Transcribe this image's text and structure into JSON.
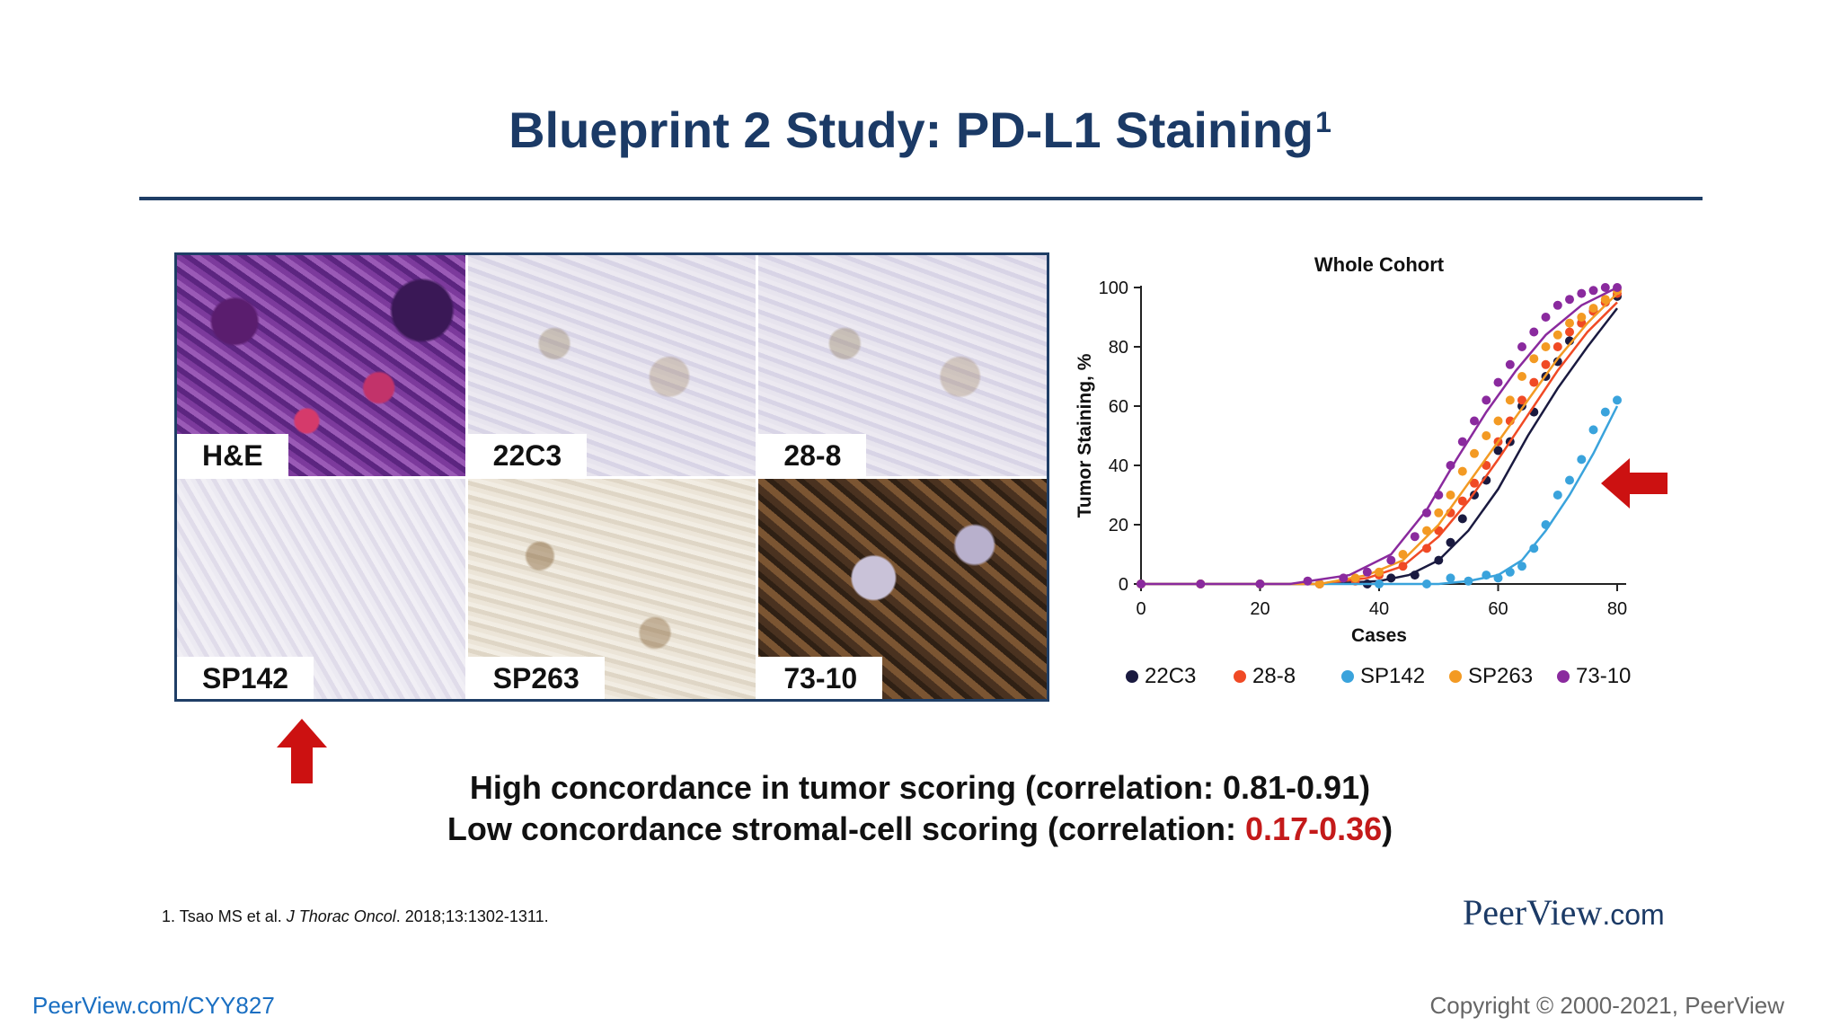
{
  "slide": {
    "title": "Blueprint 2 Study: PD-L1 Staining",
    "title_sup": "1"
  },
  "panels": [
    {
      "label": "H&E"
    },
    {
      "label": "22C3"
    },
    {
      "label": "28-8"
    },
    {
      "label": "SP142"
    },
    {
      "label": "SP263"
    },
    {
      "label": "73-10"
    }
  ],
  "colors": {
    "title": "#1b3a66",
    "accent_red": "#c41a1a",
    "arrow_red": "#cc1111",
    "series": [
      "#1a1a40",
      "#f04a25",
      "#3aa3dc",
      "#f39a23",
      "#8a2a9e"
    ]
  },
  "chart_data": {
    "type": "scatter",
    "title": "Whole Cohort",
    "xlabel": "Cases",
    "ylabel": "Tumor Staining, %",
    "xlim": [
      0,
      80
    ],
    "ylim": [
      0,
      100
    ],
    "xticks": [
      "0",
      "20",
      "40",
      "60",
      "80"
    ],
    "yticks": [
      "0",
      "20",
      "40",
      "60",
      "80",
      "100"
    ],
    "legend_position": "bottom",
    "series": [
      {
        "name": "22C3",
        "color": "#1a1a40",
        "points": [
          [
            0,
            0
          ],
          [
            10,
            0
          ],
          [
            20,
            0
          ],
          [
            30,
            0
          ],
          [
            38,
            0
          ],
          [
            42,
            2
          ],
          [
            46,
            3
          ],
          [
            50,
            8
          ],
          [
            52,
            14
          ],
          [
            54,
            22
          ],
          [
            56,
            30
          ],
          [
            58,
            35
          ],
          [
            60,
            45
          ],
          [
            62,
            48
          ],
          [
            64,
            60
          ],
          [
            66,
            58
          ],
          [
            68,
            70
          ],
          [
            70,
            75
          ],
          [
            72,
            82
          ],
          [
            74,
            88
          ],
          [
            76,
            92
          ],
          [
            78,
            95
          ],
          [
            80,
            97
          ]
        ],
        "curve": [
          [
            0,
            0
          ],
          [
            30,
            0
          ],
          [
            40,
            1
          ],
          [
            45,
            3
          ],
          [
            50,
            8
          ],
          [
            55,
            18
          ],
          [
            60,
            32
          ],
          [
            65,
            50
          ],
          [
            70,
            66
          ],
          [
            75,
            80
          ],
          [
            80,
            93
          ]
        ]
      },
      {
        "name": "28-8",
        "color": "#f04a25",
        "points": [
          [
            0,
            0
          ],
          [
            10,
            0
          ],
          [
            20,
            0
          ],
          [
            30,
            0
          ],
          [
            36,
            1
          ],
          [
            40,
            3
          ],
          [
            44,
            6
          ],
          [
            48,
            12
          ],
          [
            50,
            18
          ],
          [
            52,
            24
          ],
          [
            54,
            28
          ],
          [
            56,
            34
          ],
          [
            58,
            40
          ],
          [
            60,
            48
          ],
          [
            62,
            55
          ],
          [
            64,
            62
          ],
          [
            66,
            68
          ],
          [
            68,
            74
          ],
          [
            70,
            80
          ],
          [
            72,
            85
          ],
          [
            74,
            88
          ],
          [
            76,
            92
          ],
          [
            78,
            95
          ],
          [
            80,
            98
          ]
        ],
        "curve": [
          [
            0,
            0
          ],
          [
            30,
            0
          ],
          [
            38,
            2
          ],
          [
            44,
            6
          ],
          [
            50,
            16
          ],
          [
            55,
            28
          ],
          [
            60,
            42
          ],
          [
            65,
            57
          ],
          [
            70,
            72
          ],
          [
            75,
            85
          ],
          [
            80,
            95
          ]
        ]
      },
      {
        "name": "SP142",
        "color": "#3aa3dc",
        "points": [
          [
            0,
            0
          ],
          [
            20,
            0
          ],
          [
            40,
            0
          ],
          [
            48,
            0
          ],
          [
            52,
            2
          ],
          [
            55,
            1
          ],
          [
            58,
            3
          ],
          [
            60,
            2
          ],
          [
            62,
            4
          ],
          [
            64,
            6
          ],
          [
            66,
            12
          ],
          [
            68,
            20
          ],
          [
            70,
            30
          ],
          [
            72,
            35
          ],
          [
            74,
            42
          ],
          [
            76,
            52
          ],
          [
            78,
            58
          ],
          [
            80,
            62
          ]
        ],
        "curve": [
          [
            0,
            0
          ],
          [
            50,
            0
          ],
          [
            55,
            1
          ],
          [
            60,
            3
          ],
          [
            64,
            8
          ],
          [
            68,
            18
          ],
          [
            72,
            30
          ],
          [
            76,
            44
          ],
          [
            80,
            60
          ]
        ]
      },
      {
        "name": "SP263",
        "color": "#f39a23",
        "points": [
          [
            0,
            0
          ],
          [
            10,
            0
          ],
          [
            20,
            0
          ],
          [
            30,
            0
          ],
          [
            36,
            2
          ],
          [
            40,
            4
          ],
          [
            44,
            10
          ],
          [
            48,
            18
          ],
          [
            50,
            24
          ],
          [
            52,
            30
          ],
          [
            54,
            38
          ],
          [
            56,
            44
          ],
          [
            58,
            50
          ],
          [
            60,
            55
          ],
          [
            62,
            62
          ],
          [
            64,
            70
          ],
          [
            66,
            76
          ],
          [
            68,
            80
          ],
          [
            70,
            84
          ],
          [
            72,
            88
          ],
          [
            74,
            90
          ],
          [
            76,
            93
          ],
          [
            78,
            96
          ],
          [
            80,
            99
          ]
        ],
        "curve": [
          [
            0,
            0
          ],
          [
            30,
            0
          ],
          [
            38,
            3
          ],
          [
            44,
            8
          ],
          [
            50,
            20
          ],
          [
            55,
            34
          ],
          [
            60,
            48
          ],
          [
            65,
            62
          ],
          [
            70,
            76
          ],
          [
            75,
            88
          ],
          [
            80,
            98
          ]
        ]
      },
      {
        "name": "73-10",
        "color": "#8a2a9e",
        "points": [
          [
            0,
            0
          ],
          [
            10,
            0
          ],
          [
            20,
            0
          ],
          [
            28,
            1
          ],
          [
            34,
            2
          ],
          [
            38,
            4
          ],
          [
            42,
            8
          ],
          [
            46,
            16
          ],
          [
            48,
            24
          ],
          [
            50,
            30
          ],
          [
            52,
            40
          ],
          [
            54,
            48
          ],
          [
            56,
            55
          ],
          [
            58,
            62
          ],
          [
            60,
            68
          ],
          [
            62,
            74
          ],
          [
            64,
            80
          ],
          [
            66,
            85
          ],
          [
            68,
            90
          ],
          [
            70,
            94
          ],
          [
            72,
            96
          ],
          [
            74,
            98
          ],
          [
            76,
            99
          ],
          [
            78,
            100
          ],
          [
            80,
            100
          ]
        ],
        "curve": [
          [
            0,
            0
          ],
          [
            25,
            0
          ],
          [
            35,
            3
          ],
          [
            42,
            10
          ],
          [
            48,
            25
          ],
          [
            53,
            42
          ],
          [
            58,
            58
          ],
          [
            63,
            72
          ],
          [
            68,
            84
          ],
          [
            74,
            94
          ],
          [
            80,
            100
          ]
        ]
      }
    ]
  },
  "highlights": {
    "line1": "High concordance in tumor scoring (correlation: 0.81-0.91)",
    "line2_prefix": "Low concordance stromal-cell scoring (correlation: ",
    "line2_value": "0.17-0.36",
    "line2_suffix": ")"
  },
  "footer": {
    "footnote_prefix": "1. Tsao MS et al. ",
    "footnote_journal": "J Thorac Oncol",
    "footnote_suffix": ". 2018;13:1302-1311.",
    "brand_main": "PeerView",
    "brand_suffix": ".com",
    "link": "PeerView.com/CYY827",
    "copyright": "Copyright © 2000-2021, PeerView"
  }
}
